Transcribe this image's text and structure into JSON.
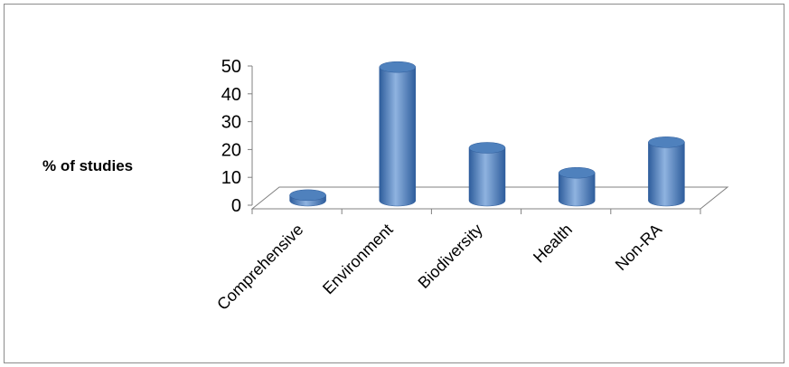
{
  "chart_data": {
    "type": "bar",
    "style": "3d-cylinder",
    "categories": [
      "Comprehensive",
      "Environment",
      "Biodiversity",
      "Health",
      "Non-RA"
    ],
    "values": [
      2,
      48,
      19,
      10,
      21
    ],
    "title": "",
    "xlabel": "",
    "ylabel": "% of studies",
    "ylim": [
      0,
      50
    ],
    "yticks": [
      0,
      10,
      20,
      30,
      40,
      50
    ],
    "grid": false,
    "legend": "none",
    "colors": {
      "bar_dark": "#2e5d9c",
      "bar_mid": "#4f81bd",
      "bar_light": "#8fb3e0",
      "axis": "#808080"
    }
  }
}
